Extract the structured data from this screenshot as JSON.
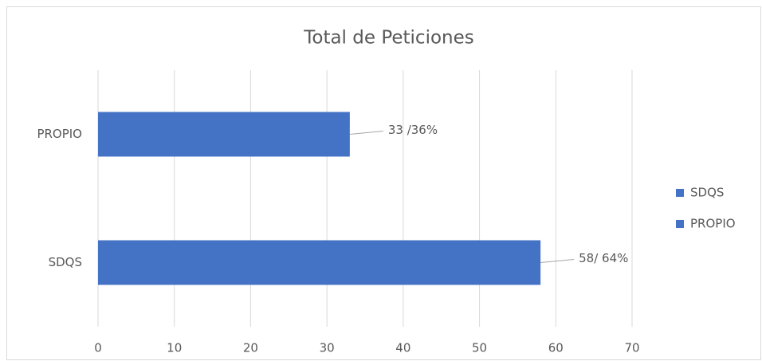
{
  "chart_data": {
    "type": "bar",
    "orientation": "horizontal",
    "title": "Total de Peticiones",
    "categories": [
      "SDQS",
      "PROPIO"
    ],
    "values": [
      58,
      33
    ],
    "value_labels": [
      "58/ 64%",
      "33 /36%"
    ],
    "color": "#4472c4",
    "xlim": [
      0,
      70
    ],
    "xticks": [
      0,
      10,
      20,
      30,
      40,
      50,
      60,
      70
    ],
    "grid": true,
    "legend": "right"
  }
}
